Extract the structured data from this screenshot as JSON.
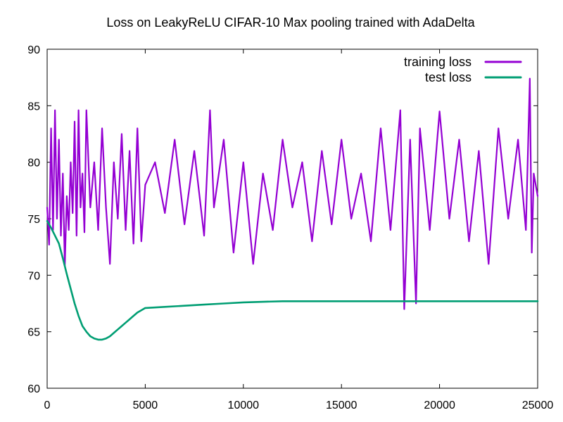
{
  "chart_data": {
    "type": "line",
    "title": "Loss on LeakyReLU CIFAR-10 Max pooling trained with AdaDelta",
    "xlabel": "",
    "ylabel": "",
    "xlim": [
      0,
      25000
    ],
    "ylim": [
      60,
      90
    ],
    "xticks": [
      0,
      5000,
      10000,
      15000,
      20000,
      25000
    ],
    "yticks": [
      60,
      65,
      70,
      75,
      80,
      85,
      90
    ],
    "grid": false,
    "legend_position": "top-right",
    "series": [
      {
        "name": "training loss",
        "color": "#9400d3",
        "x": [
          0,
          100,
          200,
          300,
          400,
          500,
          600,
          700,
          800,
          900,
          1000,
          1100,
          1200,
          1300,
          1400,
          1500,
          1600,
          1700,
          1800,
          1900,
          2000,
          2200,
          2400,
          2600,
          2800,
          3000,
          3200,
          3400,
          3600,
          3800,
          4000,
          4200,
          4400,
          4600,
          4800,
          5000,
          5500,
          6000,
          6500,
          7000,
          7500,
          8000,
          8300,
          8500,
          9000,
          9500,
          10000,
          10500,
          11000,
          11500,
          12000,
          12500,
          13000,
          13500,
          14000,
          14500,
          15000,
          15500,
          16000,
          16500,
          17000,
          17500,
          18000,
          18200,
          18500,
          18800,
          19000,
          19500,
          20000,
          20500,
          21000,
          21500,
          22000,
          22500,
          23000,
          23500,
          24000,
          24400,
          24600,
          24700,
          24800,
          25000
        ],
        "y": [
          76,
          72.7,
          83,
          74,
          84.6,
          75,
          82,
          73.5,
          79,
          70.8,
          77,
          74,
          80,
          75.5,
          83.6,
          73.5,
          84.6,
          76,
          79,
          73.8,
          84.6,
          76,
          80,
          74,
          83,
          76,
          71,
          80,
          75,
          82.5,
          74,
          81,
          72.8,
          83,
          73,
          78,
          80,
          75.5,
          82,
          74.5,
          81,
          73.5,
          84.6,
          76,
          82,
          72,
          80,
          71,
          79,
          74,
          82,
          76,
          80,
          73,
          81,
          74.5,
          82,
          75,
          79,
          73,
          83,
          74,
          84.6,
          67,
          82,
          67.5,
          83,
          74,
          84.5,
          75,
          82,
          73,
          81,
          71,
          83,
          75,
          82,
          74,
          87.4,
          72,
          79,
          77
        ]
      },
      {
        "name": "test loss",
        "color": "#009e73",
        "x": [
          0,
          200,
          400,
          600,
          800,
          1000,
          1200,
          1400,
          1600,
          1800,
          2000,
          2200,
          2400,
          2600,
          2800,
          3000,
          3200,
          3400,
          3600,
          3800,
          4000,
          4200,
          4400,
          4600,
          4800,
          5000,
          6000,
          7000,
          8000,
          9000,
          10000,
          12000,
          14000,
          16000,
          18000,
          20000,
          22000,
          24000,
          25000
        ],
        "y": [
          74.8,
          74.2,
          73.5,
          72.8,
          71.5,
          70.1,
          68.8,
          67.5,
          66.4,
          65.5,
          65,
          64.6,
          64.4,
          64.3,
          64.3,
          64.4,
          64.6,
          64.9,
          65.2,
          65.5,
          65.8,
          66.1,
          66.4,
          66.7,
          66.9,
          67.1,
          67.2,
          67.3,
          67.4,
          67.5,
          67.6,
          67.7,
          67.7,
          67.7,
          67.7,
          67.7,
          67.7,
          67.7,
          67.7
        ]
      }
    ]
  }
}
